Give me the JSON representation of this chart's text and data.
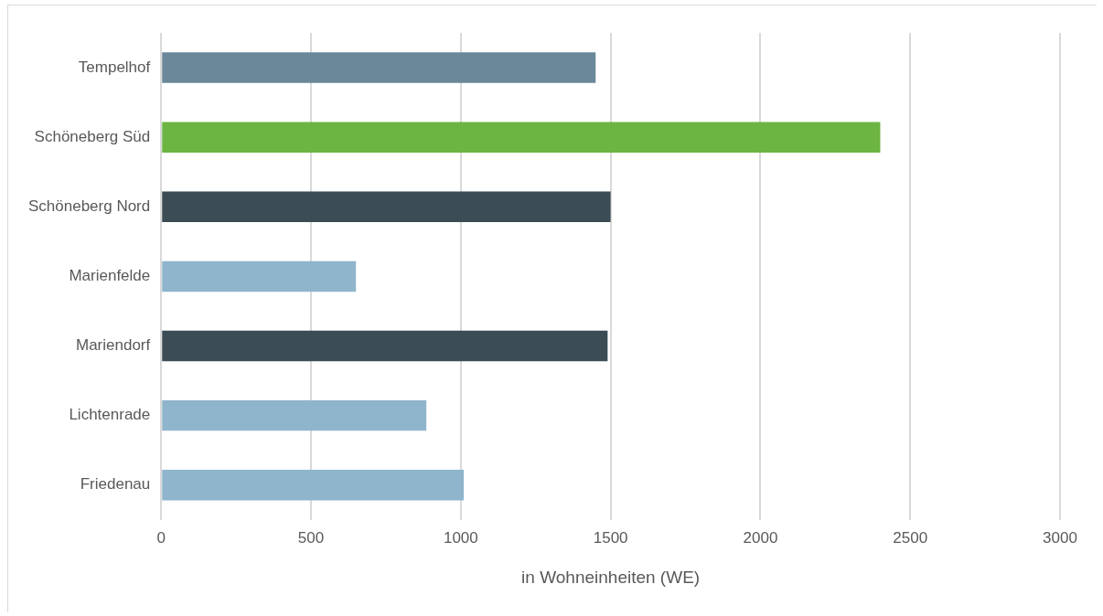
{
  "chart_data": {
    "type": "bar",
    "orientation": "horizontal",
    "xlabel": "in Wohneinheiten (WE)",
    "categories": [
      "Tempelhof",
      "Schöneberg Süd",
      "Schöneberg Nord",
      "Marienfelde",
      "Mariendorf",
      "Lichtenrade",
      "Friedenau"
    ],
    "values": [
      1450,
      2400,
      1500,
      650,
      1490,
      885,
      1010
    ],
    "colors": [
      "#6a8899",
      "#6cb543",
      "#3b4c54",
      "#8fb5cc",
      "#3b4c54",
      "#8fb5cc",
      "#8fb5cc"
    ],
    "xlim": [
      0,
      3000
    ],
    "xticks": [
      0,
      500,
      1000,
      1500,
      2000,
      2500,
      3000
    ],
    "grid": "x"
  }
}
